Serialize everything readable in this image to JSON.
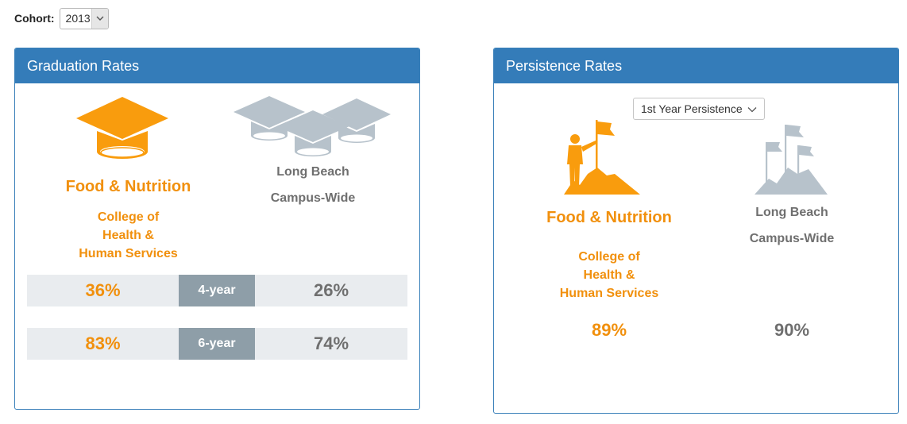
{
  "cohort": {
    "label": "Cohort:",
    "selected": "2013"
  },
  "graduation": {
    "title": "Graduation Rates",
    "program": {
      "name": "Food & Nutrition",
      "college_lines": [
        "College of",
        "Health &",
        "Human Services"
      ]
    },
    "campus": {
      "line1": "Long Beach",
      "line2": "Campus-Wide"
    },
    "rows": [
      {
        "left": "36%",
        "label": "4-year",
        "right": "26%"
      },
      {
        "left": "83%",
        "label": "6-year",
        "right": "74%"
      }
    ]
  },
  "persistence": {
    "title": "Persistence Rates",
    "dropdown": "1st Year Persistence",
    "program": {
      "name": "Food & Nutrition",
      "college_lines": [
        "College of",
        "Health &",
        "Human Services"
      ],
      "value": "89%"
    },
    "campus": {
      "line1": "Long Beach",
      "line2": "Campus-Wide",
      "value": "90%"
    }
  },
  "colors": {
    "accent_orange": "#f1900d",
    "header_blue": "#347cb9",
    "gray_text": "#6f6f6f",
    "icon_gray": "#b7c2cb",
    "row_bg": "#e9ecef",
    "label_bg": "#8e9ea8"
  },
  "icons": [
    "chevron-down-icon",
    "graduation-cap-icon",
    "graduation-caps-group-icon",
    "person-flag-mountain-icon",
    "flags-mountain-icon"
  ]
}
